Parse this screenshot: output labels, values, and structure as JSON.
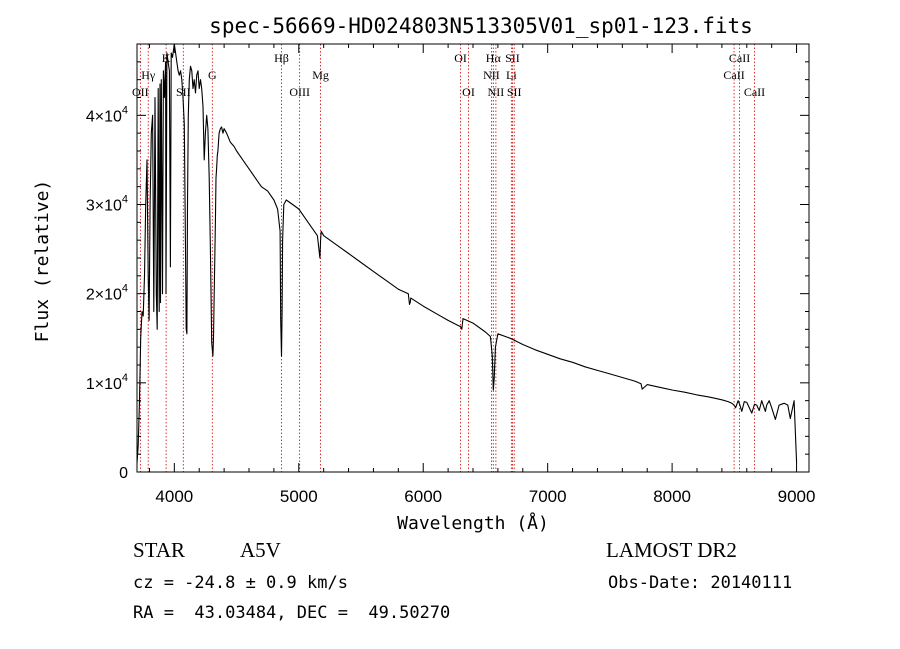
{
  "chart_data": {
    "type": "line",
    "title": "spec-56669-HD024803N513305V01_sp01-123.fits",
    "xlabel": "Wavelength (Å)",
    "ylabel": "Flux (relative)",
    "xlim": [
      3700,
      9100
    ],
    "ylim": [
      0,
      48000
    ],
    "x_ticks": [
      {
        "value": 4000,
        "label": "4000"
      },
      {
        "value": 5000,
        "label": "5000"
      },
      {
        "value": 6000,
        "label": "6000"
      },
      {
        "value": 7000,
        "label": "7000"
      },
      {
        "value": 8000,
        "label": "8000"
      },
      {
        "value": 9000,
        "label": "9000"
      }
    ],
    "y_ticks": [
      {
        "value": 0,
        "mant": "0",
        "exp": ""
      },
      {
        "value": 10000,
        "mant": "1×10",
        "exp": "4"
      },
      {
        "value": 20000,
        "mant": "2×10",
        "exp": "4"
      },
      {
        "value": 30000,
        "mant": "3×10",
        "exp": "4"
      },
      {
        "value": 40000,
        "mant": "4×10",
        "exp": "4"
      }
    ],
    "series": [
      {
        "name": "spectrum",
        "x": [
          3700,
          3710,
          3720,
          3730,
          3740,
          3750,
          3760,
          3770,
          3780,
          3790,
          3797,
          3805,
          3815,
          3825,
          3835,
          3845,
          3855,
          3862,
          3870,
          3878,
          3885,
          3889,
          3895,
          3905,
          3912,
          3920,
          3930,
          3933,
          3940,
          3950,
          3960,
          3968,
          3975,
          3985,
          3995,
          4000,
          4010,
          4020,
          4030,
          4040,
          4050,
          4060,
          4070,
          4080,
          4090,
          4095,
          4101,
          4106,
          4112,
          4120,
          4130,
          4140,
          4150,
          4160,
          4170,
          4180,
          4190,
          4200,
          4210,
          4220,
          4230,
          4240,
          4250,
          4260,
          4270,
          4280,
          4290,
          4300,
          4310,
          4315,
          4320,
          4330,
          4335,
          4340,
          4345,
          4350,
          4360,
          4370,
          4380,
          4390,
          4400,
          4420,
          4450,
          4480,
          4500,
          4550,
          4600,
          4650,
          4700,
          4750,
          4800,
          4830,
          4850,
          4855,
          4861,
          4866,
          4870,
          4880,
          4900,
          4950,
          5000,
          5050,
          5100,
          5150,
          5170,
          5175,
          5180,
          5200,
          5300,
          5400,
          5500,
          5600,
          5700,
          5800,
          5880,
          5890,
          5895,
          5900,
          6000,
          6100,
          6200,
          6300,
          6310,
          6320,
          6400,
          6500,
          6540,
          6555,
          6563,
          6570,
          6580,
          6600,
          6700,
          6800,
          6900,
          7000,
          7100,
          7200,
          7300,
          7400,
          7500,
          7600,
          7700,
          7750,
          7760,
          7800,
          7900,
          8000,
          8100,
          8200,
          8300,
          8400,
          8450,
          8480,
          8498,
          8510,
          8530,
          8542,
          8560,
          8580,
          8600,
          8640,
          8662,
          8680,
          8700,
          8720,
          8750,
          8760,
          8780,
          8800,
          8830,
          8860,
          8880,
          8900,
          8930,
          8950,
          8980,
          9000
        ],
        "y": [
          1000,
          3000,
          8000,
          15000,
          18000,
          17500,
          22000,
          30000,
          35000,
          22000,
          17000,
          30000,
          38000,
          40000,
          18000,
          42000,
          20000,
          16000,
          43000,
          18000,
          43500,
          19000,
          44000,
          20000,
          45000,
          42000,
          46000,
          20000,
          47000,
          46000,
          45000,
          23000,
          47000,
          46500,
          47500,
          48000,
          47000,
          46000,
          45000,
          44500,
          45000,
          44000,
          42000,
          39000,
          25000,
          16000,
          15500,
          30000,
          40000,
          44000,
          45500,
          45000,
          43000,
          44000,
          42500,
          44500,
          45000,
          43000,
          44000,
          43000,
          41000,
          35000,
          38000,
          40000,
          38500,
          33000,
          25000,
          14500,
          13000,
          15000,
          20000,
          28000,
          33000,
          34000,
          35500,
          36000,
          38000,
          38500,
          38700,
          38000,
          38500,
          38000,
          37000,
          36500,
          36000,
          35000,
          34000,
          33000,
          32000,
          31500,
          30500,
          29500,
          27000,
          17000,
          13000,
          18000,
          26000,
          30000,
          30500,
          30000,
          29500,
          28500,
          27500,
          26500,
          24000,
          26000,
          27000,
          26500,
          25500,
          24500,
          23500,
          22500,
          21500,
          20500,
          20000,
          18800,
          19000,
          19500,
          18600,
          17800,
          17000,
          16300,
          16000,
          17200,
          16700,
          15700,
          15200,
          13000,
          9200,
          10500,
          14000,
          15500,
          15000,
          14300,
          13700,
          13200,
          12700,
          12300,
          11800,
          11400,
          11000,
          10600,
          10200,
          9900,
          9300,
          9800,
          9500,
          9200,
          8950,
          8650,
          8400,
          8100,
          7900,
          7700,
          7500,
          7200,
          8000,
          7600,
          6800,
          7900,
          7800,
          6600,
          7600,
          7500,
          6900,
          8000,
          6800,
          7500,
          8000,
          7200,
          5900,
          7500,
          7600,
          7700,
          7500,
          6000,
          8000,
          1000
        ]
      }
    ],
    "lines": [
      {
        "label": "OII",
        "wave": 3727,
        "row": 3
      },
      {
        "label": "Hγ",
        "wave": 3790,
        "row": 2
      },
      {
        "label": "K",
        "wave": 3934,
        "row": 1
      },
      {
        "label": "SII",
        "wave": 4072,
        "row": 3
      },
      {
        "label": "G",
        "wave": 4305,
        "row": 2
      },
      {
        "label": "Hβ",
        "wave": 4861,
        "row": 1
      },
      {
        "label": "OIII",
        "wave": 5007,
        "row": 3
      },
      {
        "label": "Mg",
        "wave": 5175,
        "row": 2
      },
      {
        "label": "OI",
        "wave": 6300,
        "row": 1
      },
      {
        "label": "OI",
        "wave": 6364,
        "row": 3
      },
      {
        "label": "Hα",
        "wave": 6563,
        "row": 1
      },
      {
        "label": "NII",
        "wave": 6548,
        "row": 2
      },
      {
        "label": "NII",
        "wave": 6584,
        "row": 3
      },
      {
        "label": "SII",
        "wave": 6717,
        "row": 1
      },
      {
        "label": "Li",
        "wave": 6708,
        "row": 2
      },
      {
        "label": "SII",
        "wave": 6731,
        "row": 3
      },
      {
        "label": "CaII",
        "wave": 8498,
        "row": 2
      },
      {
        "label": "CaII",
        "wave": 8542,
        "row": 1
      },
      {
        "label": "CaII",
        "wave": 8662,
        "row": 3
      }
    ]
  },
  "info": {
    "object_class": "STAR",
    "subclass": "A5V",
    "survey": "LAMOST DR2",
    "cz": "cz = -24.8 ± 0.9 km/s",
    "obs_date": "Obs-Date: 20140111",
    "coords": "RA =  43.03484, DEC =  49.50270"
  },
  "colors": {
    "line": "#000000",
    "marker": "#cc0000",
    "text": "#000000"
  }
}
